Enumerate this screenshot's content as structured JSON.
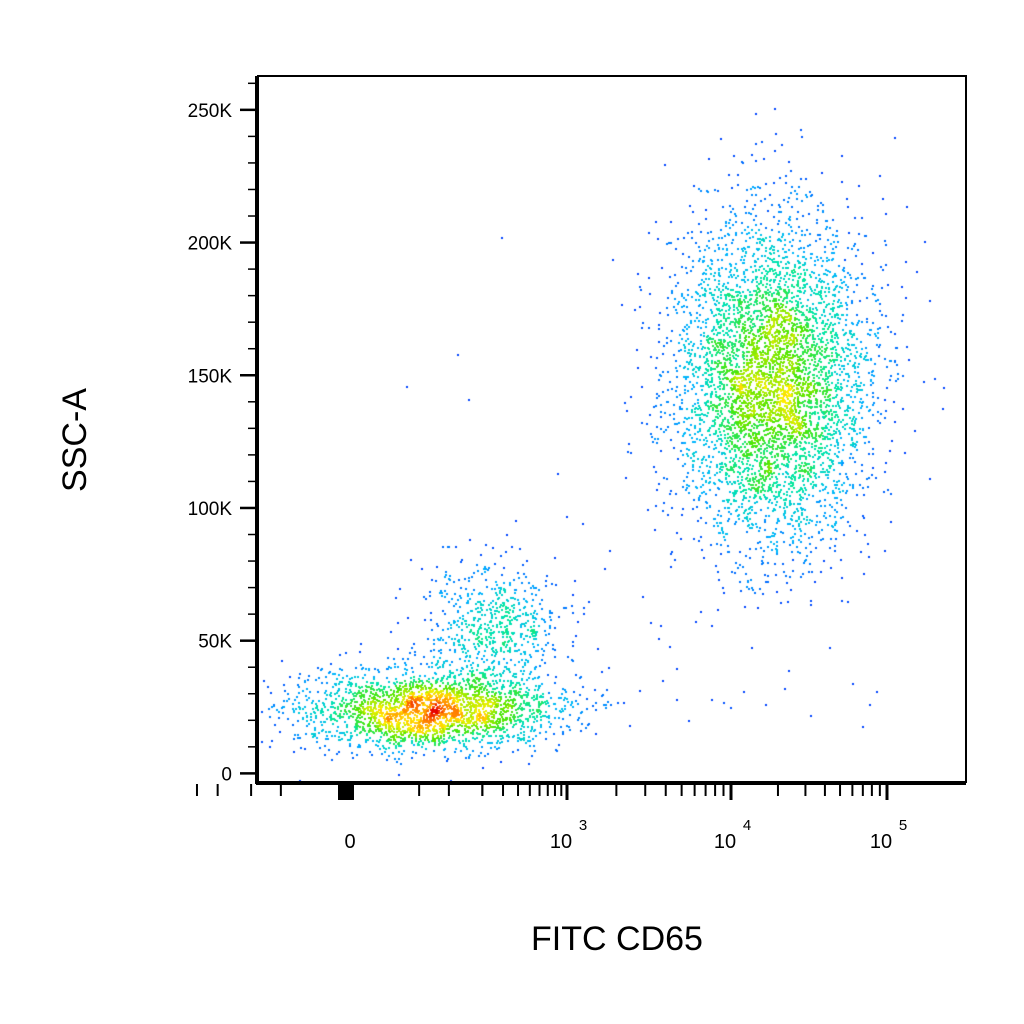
{
  "chart_data": {
    "type": "scatter",
    "title": "",
    "xlabel": "FITC CD65",
    "ylabel": "SSC-A",
    "x_scale": "biexponential",
    "y_scale": "linear",
    "xlim": [
      -500,
      200000
    ],
    "ylim": [
      -4000,
      262000
    ],
    "grid": false,
    "legend": "none",
    "color_scale": "density (blue-cyan-green-yellow-red)",
    "y_ticks": [
      {
        "value": 0,
        "label": "0"
      },
      {
        "value": 50000,
        "label": "50K"
      },
      {
        "value": 100000,
        "label": "100K"
      },
      {
        "value": 150000,
        "label": "150K"
      },
      {
        "value": 200000,
        "label": "200K"
      },
      {
        "value": 250000,
        "label": "250K"
      }
    ],
    "x_ticks": [
      {
        "value": 0,
        "label": "0",
        "exp": ""
      },
      {
        "value": 1000,
        "label": "10",
        "exp": "3"
      },
      {
        "value": 10000,
        "label": "10",
        "exp": "4"
      },
      {
        "value": 100000,
        "label": "10",
        "exp": "5"
      }
    ],
    "populations": [
      {
        "name": "",
        "x_center": 60,
        "y_center": 24000,
        "x_range": [
          -300,
          400
        ],
        "y_range": [
          8000,
          45000
        ],
        "events": 2600
      },
      {
        "name": "",
        "x_center": 250,
        "y_center": 55000,
        "x_range": [
          20,
          900
        ],
        "y_range": [
          30000,
          95000
        ],
        "events": 700
      },
      {
        "name": "",
        "x_center": 18000,
        "y_center": 148000,
        "x_range": [
          2500,
          80000
        ],
        "y_range": [
          70000,
          222000
        ],
        "events": 5200
      }
    ],
    "sparse_points": [
      {
        "x": 290,
        "y": 202000
      },
      {
        "x": 120,
        "y": 158000
      },
      {
        "x": 35,
        "y": 146000
      },
      {
        "x": 150,
        "y": 141000
      },
      {
        "x": 830,
        "y": 113000
      },
      {
        "x": 980,
        "y": 97000
      },
      {
        "x": 3100,
        "y": 204000
      },
      {
        "x": 130000,
        "y": 193000
      },
      {
        "x": 170000,
        "y": 148000
      },
      {
        "x": 200000,
        "y": 149000
      },
      {
        "x": 3200,
        "y": 57000
      },
      {
        "x": 3700,
        "y": 56000
      },
      {
        "x": 4200,
        "y": 48000
      },
      {
        "x": 3800,
        "y": 35000
      },
      {
        "x": 4600,
        "y": 28000
      },
      {
        "x": 7500,
        "y": 28000
      },
      {
        "x": 9800,
        "y": 25000
      },
      {
        "x": 12000,
        "y": 31000
      },
      {
        "x": 16500,
        "y": 26000
      },
      {
        "x": 22000,
        "y": 32000
      },
      {
        "x": 60000,
        "y": 34000
      },
      {
        "x": 85000,
        "y": 31000
      },
      {
        "x": 77000,
        "y": 26000
      },
      {
        "x": 5500,
        "y": 20000
      },
      {
        "x": 2200,
        "y": 27000
      },
      {
        "x": 1700,
        "y": 25000
      },
      {
        "x": 1050,
        "y": 26000
      },
      {
        "x": 1350,
        "y": 19000
      },
      {
        "x": 9000,
        "y": 27000
      },
      {
        "x": 32000,
        "y": 22000
      }
    ]
  }
}
